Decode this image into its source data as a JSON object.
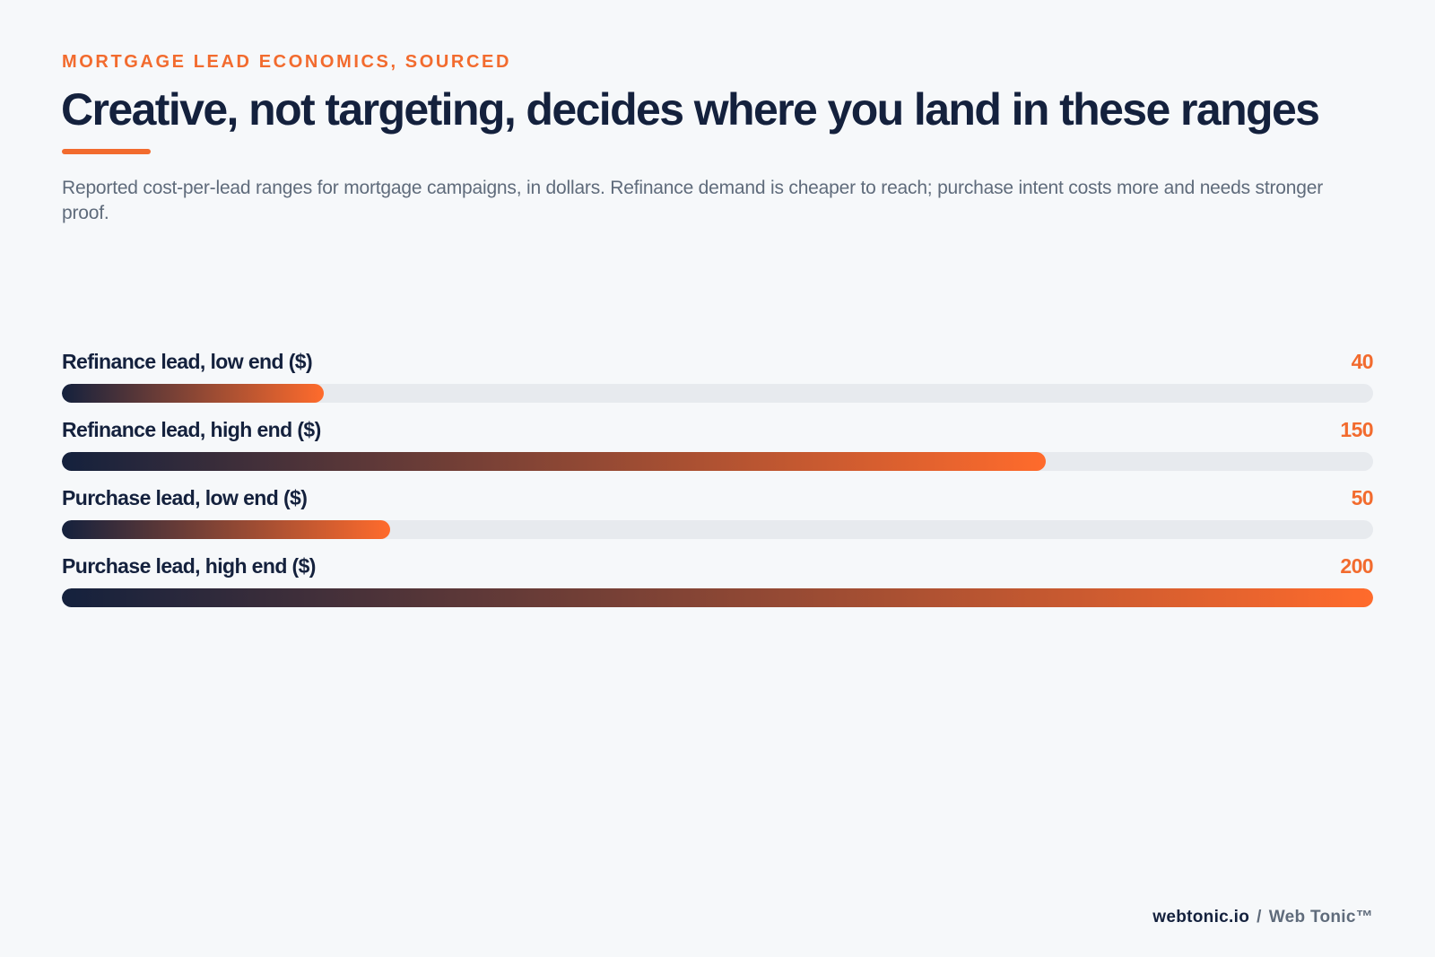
{
  "eyebrow": "MORTGAGE LEAD ECONOMICS, SOURCED",
  "title": "Creative, not targeting, decides where you land in these ranges",
  "subtitle": "Reported cost-per-lead ranges for mortgage campaigns, in dollars. Refinance demand is cheaper to reach; purchase intent costs more and needs stronger proof.",
  "footer": {
    "site": "webtonic.io",
    "separator": "/",
    "brand": "Web Tonic™"
  },
  "colors": {
    "accent": "#f26b2e",
    "navy": "#14213d",
    "track": "#e7eaee",
    "background": "#f6f8fa"
  },
  "chart_data": {
    "type": "bar",
    "orientation": "horizontal",
    "title": "Creative, not targeting, decides where you land in these ranges",
    "categories": [
      "Refinance lead, low end ($)",
      "Refinance lead, high end ($)",
      "Purchase lead, low end ($)",
      "Purchase lead, high end ($)"
    ],
    "values": [
      40,
      150,
      50,
      200
    ],
    "xlim": [
      0,
      200
    ],
    "grid": false,
    "legend": "none"
  }
}
